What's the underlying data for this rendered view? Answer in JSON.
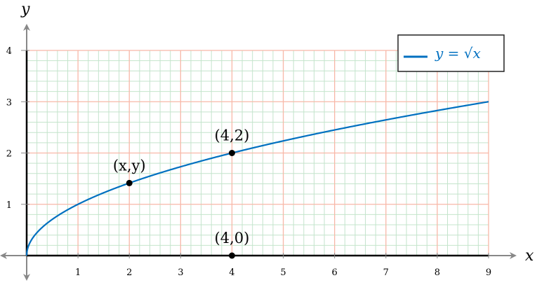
{
  "chart_data": {
    "type": "line",
    "title": "",
    "xlabel": "x",
    "ylabel": "y",
    "xlim": [
      0,
      9
    ],
    "ylim": [
      0,
      4
    ],
    "xticks": [
      "1",
      "2",
      "3",
      "4",
      "5",
      "6",
      "7",
      "8",
      "9"
    ],
    "yticks": [
      "1",
      "2",
      "3",
      "4"
    ],
    "grid": {
      "major": true,
      "major_step": 1,
      "minor": true,
      "minor_step": 0.2
    },
    "legend": {
      "position": "top-right",
      "entries": [
        "y = √x"
      ]
    },
    "series": [
      {
        "name": "y = √x",
        "function": "sqrt",
        "x_range": [
          0,
          9
        ],
        "color": "#0070c0"
      }
    ],
    "points": [
      {
        "x": 2,
        "y": 1.414,
        "label": "(x,y)"
      },
      {
        "x": 4,
        "y": 2,
        "label": "(4,2)"
      },
      {
        "x": 4,
        "y": 0,
        "label": "(4,0)"
      }
    ],
    "colors": {
      "major_grid": "#f8b8a8",
      "minor_grid": "#c4e4cc",
      "curve": "#0070c0",
      "axis_arrow": "#888888"
    }
  }
}
